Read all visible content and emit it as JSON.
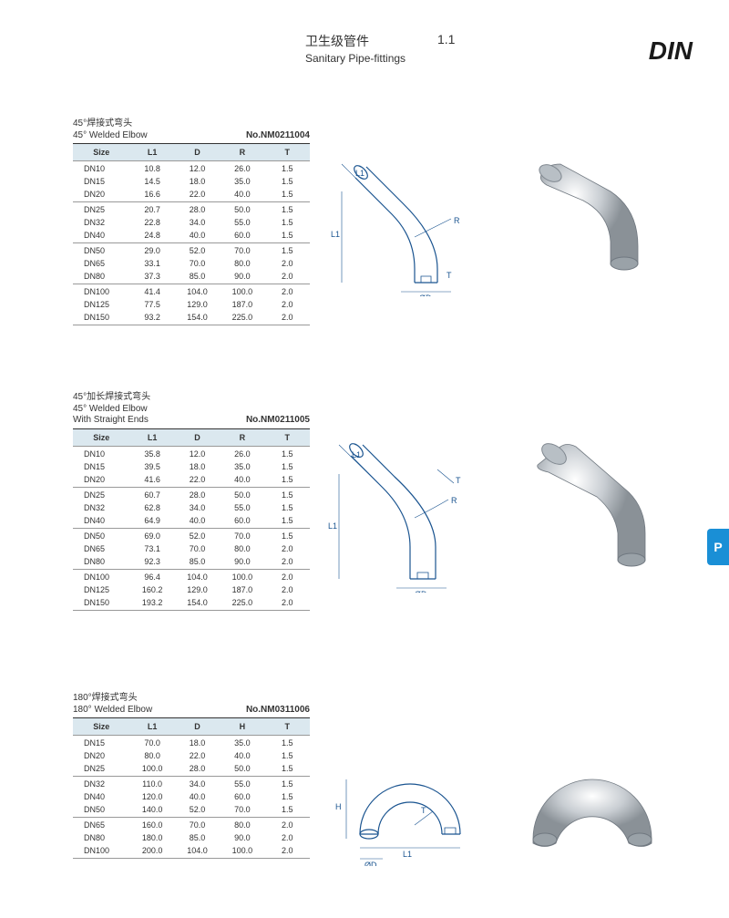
{
  "page": {
    "title_cn": "卫生级管件",
    "title_en": "Sanitary Pipe-fittings",
    "section_number": "1.1",
    "standard": "DIN",
    "side_tab": "P"
  },
  "theme": {
    "header_bg": "#dbe8ef",
    "rule_color": "#999999",
    "text_color": "#333333",
    "diagram_color": "#1a5490",
    "tab_bg": "#1a8fd6",
    "page_bg": "#ffffff"
  },
  "products": [
    {
      "title_cn": "45°焊接式弯头",
      "title_en": "45° Welded Elbow",
      "code": "No.NM0211004",
      "columns": [
        "Size",
        "L1",
        "D",
        "R",
        "T"
      ],
      "groups": [
        [
          [
            "DN10",
            "10.8",
            "12.0",
            "26.0",
            "1.5"
          ],
          [
            "DN15",
            "14.5",
            "18.0",
            "35.0",
            "1.5"
          ],
          [
            "DN20",
            "16.6",
            "22.0",
            "40.0",
            "1.5"
          ]
        ],
        [
          [
            "DN25",
            "20.7",
            "28.0",
            "50.0",
            "1.5"
          ],
          [
            "DN32",
            "22.8",
            "34.0",
            "55.0",
            "1.5"
          ],
          [
            "DN40",
            "24.8",
            "40.0",
            "60.0",
            "1.5"
          ]
        ],
        [
          [
            "DN50",
            "29.0",
            "52.0",
            "70.0",
            "1.5"
          ],
          [
            "DN65",
            "33.1",
            "70.0",
            "80.0",
            "2.0"
          ],
          [
            "DN80",
            "37.3",
            "85.0",
            "90.0",
            "2.0"
          ]
        ],
        [
          [
            "DN100",
            "41.4",
            "104.0",
            "100.0",
            "2.0"
          ],
          [
            "DN125",
            "77.5",
            "129.0",
            "187.0",
            "2.0"
          ],
          [
            "DN150",
            "93.2",
            "154.0",
            "225.0",
            "2.0"
          ]
        ]
      ]
    },
    {
      "title_cn": "45°加长焊接式弯头",
      "title_en_1": "45° Welded Elbow",
      "title_en_2": "With Straight Ends",
      "code": "No.NM0211005",
      "columns": [
        "Size",
        "L1",
        "D",
        "R",
        "T"
      ],
      "groups": [
        [
          [
            "DN10",
            "35.8",
            "12.0",
            "26.0",
            "1.5"
          ],
          [
            "DN15",
            "39.5",
            "18.0",
            "35.0",
            "1.5"
          ],
          [
            "DN20",
            "41.6",
            "22.0",
            "40.0",
            "1.5"
          ]
        ],
        [
          [
            "DN25",
            "60.7",
            "28.0",
            "50.0",
            "1.5"
          ],
          [
            "DN32",
            "62.8",
            "34.0",
            "55.0",
            "1.5"
          ],
          [
            "DN40",
            "64.9",
            "40.0",
            "60.0",
            "1.5"
          ]
        ],
        [
          [
            "DN50",
            "69.0",
            "52.0",
            "70.0",
            "1.5"
          ],
          [
            "DN65",
            "73.1",
            "70.0",
            "80.0",
            "2.0"
          ],
          [
            "DN80",
            "92.3",
            "85.0",
            "90.0",
            "2.0"
          ]
        ],
        [
          [
            "DN100",
            "96.4",
            "104.0",
            "100.0",
            "2.0"
          ],
          [
            "DN125",
            "160.2",
            "129.0",
            "187.0",
            "2.0"
          ],
          [
            "DN150",
            "193.2",
            "154.0",
            "225.0",
            "2.0"
          ]
        ]
      ]
    },
    {
      "title_cn": "180°焊接式弯头",
      "title_en": "180° Welded Elbow",
      "code": "No.NM0311006",
      "columns": [
        "Size",
        "L1",
        "D",
        "H",
        "T"
      ],
      "groups": [
        [
          [
            "DN15",
            "70.0",
            "18.0",
            "35.0",
            "1.5"
          ],
          [
            "DN20",
            "80.0",
            "22.0",
            "40.0",
            "1.5"
          ],
          [
            "DN25",
            "100.0",
            "28.0",
            "50.0",
            "1.5"
          ]
        ],
        [
          [
            "DN32",
            "110.0",
            "34.0",
            "55.0",
            "1.5"
          ],
          [
            "DN40",
            "120.0",
            "40.0",
            "60.0",
            "1.5"
          ],
          [
            "DN50",
            "140.0",
            "52.0",
            "70.0",
            "1.5"
          ]
        ],
        [
          [
            "DN65",
            "160.0",
            "70.0",
            "80.0",
            "2.0"
          ],
          [
            "DN80",
            "180.0",
            "85.0",
            "90.0",
            "2.0"
          ],
          [
            "DN100",
            "200.0",
            "104.0",
            "100.0",
            "2.0"
          ]
        ]
      ]
    }
  ],
  "diagram_labels": {
    "L1": "L1",
    "D": "ØD",
    "R": "R",
    "T": "T",
    "H": "H"
  }
}
